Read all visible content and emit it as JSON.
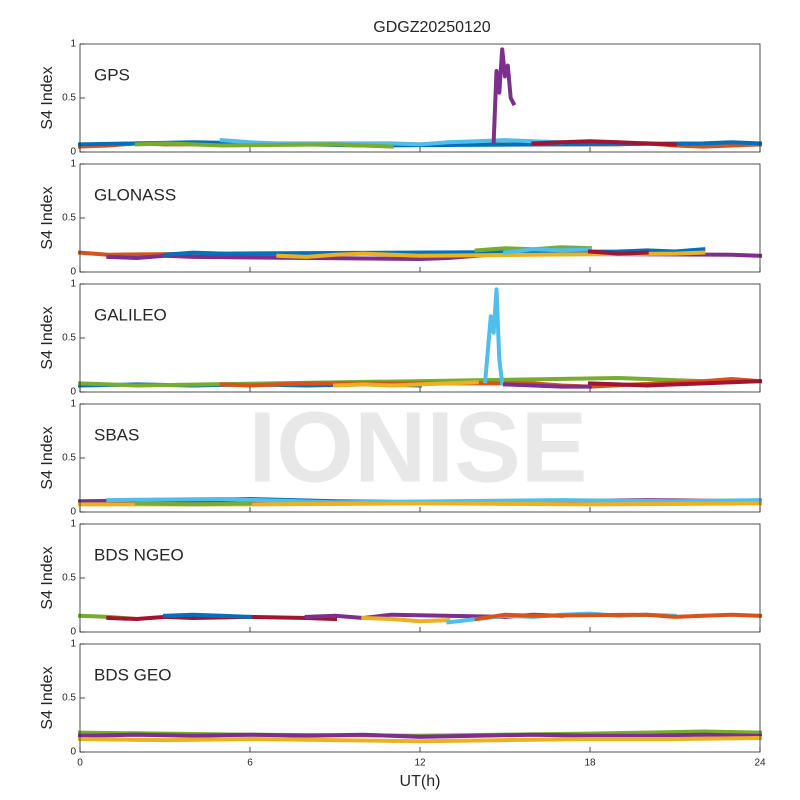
{
  "title": "GDGZ20250120",
  "watermark": "IONISE",
  "chart_data": [
    {
      "type": "line",
      "title": "GPS",
      "ylabel": "S4 Index",
      "ylim": [
        0,
        1
      ],
      "yticks": [
        0,
        0.5,
        1
      ],
      "xlim": [
        0,
        24
      ],
      "xticks": [
        0,
        6,
        12,
        18,
        24
      ],
      "series": [
        {
          "color": "#D95319",
          "x": [
            0,
            1,
            2,
            3,
            19,
            20,
            21,
            22,
            23,
            24
          ],
          "values": [
            0.05,
            0.06,
            0.08,
            0.07,
            0.07,
            0.08,
            0.06,
            0.05,
            0.06,
            0.07
          ]
        },
        {
          "color": "#0072BD",
          "x": [
            0,
            2,
            4,
            6,
            8,
            10,
            22,
            23,
            24
          ],
          "values": [
            0.07,
            0.08,
            0.09,
            0.08,
            0.07,
            0.06,
            0.08,
            0.09,
            0.08
          ]
        },
        {
          "color": "#4DBEEE",
          "x": [
            5,
            6,
            7,
            11,
            12,
            13,
            14,
            15,
            16,
            17
          ],
          "values": [
            0.11,
            0.09,
            0.08,
            0.08,
            0.07,
            0.09,
            0.1,
            0.11,
            0.1,
            0.09
          ]
        },
        {
          "color": "#A2142F",
          "x": [
            16,
            17,
            18,
            19,
            20,
            21
          ],
          "values": [
            0.08,
            0.09,
            0.1,
            0.09,
            0.08,
            0.07
          ]
        },
        {
          "color": "#77AC30",
          "x": [
            2,
            3,
            4,
            5,
            9,
            10,
            11
          ],
          "values": [
            0.07,
            0.08,
            0.07,
            0.06,
            0.07,
            0.06,
            0.05
          ]
        },
        {
          "color": "#7E2F8E",
          "x": [
            14.6,
            14.7,
            14.8,
            14.9,
            15,
            15.1,
            15.2,
            15.3
          ],
          "values": [
            0.1,
            0.75,
            0.55,
            0.95,
            0.7,
            0.8,
            0.5,
            0.45
          ]
        }
      ]
    },
    {
      "type": "line",
      "title": "GLONASS",
      "ylabel": "S4 Index",
      "ylim": [
        0,
        1
      ],
      "yticks": [
        0,
        0.5,
        1
      ],
      "xlim": [
        0,
        24
      ],
      "xticks": [
        0,
        6,
        12,
        18,
        24
      ],
      "series": [
        {
          "color": "#D95319",
          "x": [
            0,
            1,
            5,
            6,
            7,
            8
          ],
          "values": [
            0.18,
            0.16,
            0.17,
            0.15,
            0.16,
            0.15
          ]
        },
        {
          "color": "#7E2F8E",
          "x": [
            1,
            2,
            3,
            4,
            12,
            13,
            14,
            15,
            23,
            24
          ],
          "values": [
            0.14,
            0.13,
            0.15,
            0.14,
            0.12,
            0.13,
            0.15,
            0.17,
            0.16,
            0.15
          ]
        },
        {
          "color": "#0072BD",
          "x": [
            3,
            4,
            5,
            19,
            20,
            21,
            22
          ],
          "values": [
            0.16,
            0.18,
            0.17,
            0.19,
            0.2,
            0.19,
            0.21
          ]
        },
        {
          "color": "#EDB120",
          "x": [
            7,
            8,
            9,
            10,
            11,
            12,
            21,
            22
          ],
          "values": [
            0.15,
            0.14,
            0.16,
            0.17,
            0.16,
            0.15,
            0.17,
            0.18
          ]
        },
        {
          "color": "#77AC30",
          "x": [
            14,
            15,
            16,
            17,
            18
          ],
          "values": [
            0.2,
            0.22,
            0.21,
            0.23,
            0.22
          ]
        },
        {
          "color": "#4DBEEE",
          "x": [
            15,
            16,
            17,
            18
          ],
          "values": [
            0.18,
            0.21,
            0.2,
            0.21
          ]
        },
        {
          "color": "#A2142F",
          "x": [
            18,
            19,
            20
          ],
          "values": [
            0.19,
            0.17,
            0.18
          ]
        }
      ]
    },
    {
      "type": "line",
      "title": "GALILEO",
      "ylabel": "S4 Index",
      "ylim": [
        0,
        1
      ],
      "yticks": [
        0,
        0.5,
        1
      ],
      "xlim": [
        0,
        24
      ],
      "xticks": [
        0,
        6,
        12,
        18,
        24
      ],
      "series": [
        {
          "color": "#0072BD",
          "x": [
            0,
            2,
            4,
            6,
            8,
            10,
            12
          ],
          "values": [
            0.06,
            0.07,
            0.06,
            0.07,
            0.06,
            0.07,
            0.06
          ]
        },
        {
          "color": "#77AC30",
          "x": [
            0,
            1,
            2,
            19,
            20,
            21,
            22
          ],
          "values": [
            0.08,
            0.07,
            0.06,
            0.13,
            0.12,
            0.11,
            0.1
          ]
        },
        {
          "color": "#D95319",
          "x": [
            5,
            6,
            7,
            8,
            16,
            17,
            18,
            22,
            23,
            24
          ],
          "values": [
            0.07,
            0.06,
            0.07,
            0.08,
            0.08,
            0.06,
            0.05,
            0.1,
            0.12,
            0.1
          ]
        },
        {
          "color": "#EDB120",
          "x": [
            9,
            10,
            11,
            12,
            13,
            14
          ],
          "values": [
            0.06,
            0.07,
            0.06,
            0.07,
            0.08,
            0.09
          ]
        },
        {
          "color": "#4DBEEE",
          "x": [
            14.3,
            14.4,
            14.5,
            14.6,
            14.7,
            14.8,
            14.9
          ],
          "values": [
            0.1,
            0.4,
            0.7,
            0.55,
            0.95,
            0.3,
            0.08
          ]
        },
        {
          "color": "#A2142F",
          "x": [
            18,
            19,
            20,
            21,
            22,
            23,
            24
          ],
          "values": [
            0.08,
            0.07,
            0.06,
            0.07,
            0.08,
            0.09,
            0.1
          ]
        },
        {
          "color": "#7E2F8E",
          "x": [
            15,
            16,
            17,
            18
          ],
          "values": [
            0.07,
            0.06,
            0.05,
            0.05
          ]
        }
      ]
    },
    {
      "type": "line",
      "title": "SBAS",
      "ylabel": "S4 Index",
      "ylim": [
        0,
        1
      ],
      "yticks": [
        0,
        0.5,
        1
      ],
      "xlim": [
        0,
        24
      ],
      "xticks": [
        0,
        6,
        12,
        18,
        24
      ],
      "series": [
        {
          "color": "#0072BD",
          "x": [
            0,
            3,
            6,
            9,
            12,
            15,
            18,
            21,
            24
          ],
          "values": [
            0.1,
            0.11,
            0.12,
            0.1,
            0.09,
            0.1,
            0.1,
            0.09,
            0.1
          ]
        },
        {
          "color": "#7E2F8E",
          "x": [
            0,
            4,
            8,
            12,
            16,
            20,
            24
          ],
          "values": [
            0.09,
            0.1,
            0.1,
            0.09,
            0.1,
            0.11,
            0.1
          ]
        },
        {
          "color": "#4DBEEE",
          "x": [
            1,
            5,
            9,
            13,
            17,
            21,
            24
          ],
          "values": [
            0.11,
            0.12,
            0.09,
            0.1,
            0.11,
            0.1,
            0.11
          ]
        },
        {
          "color": "#EDB120",
          "x": [
            0,
            6,
            12,
            18,
            24
          ],
          "values": [
            0.07,
            0.07,
            0.08,
            0.07,
            0.08
          ]
        },
        {
          "color": "#77AC30",
          "x": [
            2,
            4,
            6
          ],
          "values": [
            0.08,
            0.07,
            0.08
          ]
        }
      ]
    },
    {
      "type": "line",
      "title": "BDS NGEO",
      "ylabel": "S4 Index",
      "ylim": [
        0,
        1
      ],
      "yticks": [
        0,
        0.5,
        1
      ],
      "xlim": [
        0,
        24
      ],
      "xticks": [
        0,
        6,
        12,
        18,
        24
      ],
      "series": [
        {
          "color": "#77AC30",
          "x": [
            0,
            1,
            2
          ],
          "values": [
            0.15,
            0.14,
            0.12
          ]
        },
        {
          "color": "#A2142F",
          "x": [
            1,
            2,
            3,
            4,
            6,
            8,
            9
          ],
          "values": [
            0.13,
            0.12,
            0.14,
            0.13,
            0.14,
            0.13,
            0.12
          ]
        },
        {
          "color": "#0072BD",
          "x": [
            3,
            4,
            5,
            6
          ],
          "values": [
            0.15,
            0.16,
            0.15,
            0.14
          ]
        },
        {
          "color": "#7E2F8E",
          "x": [
            8,
            9,
            10,
            11,
            15,
            16,
            17
          ],
          "values": [
            0.14,
            0.15,
            0.13,
            0.16,
            0.14,
            0.16,
            0.15
          ]
        },
        {
          "color": "#EDB120",
          "x": [
            10,
            11,
            12,
            13
          ],
          "values": [
            0.13,
            0.12,
            0.1,
            0.11
          ]
        },
        {
          "color": "#4DBEEE",
          "x": [
            13,
            14,
            15,
            16,
            17,
            18,
            19,
            20,
            21
          ],
          "values": [
            0.09,
            0.12,
            0.15,
            0.14,
            0.16,
            0.17,
            0.15,
            0.16,
            0.15
          ]
        },
        {
          "color": "#D95319",
          "x": [
            14,
            15,
            16,
            20,
            21,
            22,
            23,
            24
          ],
          "values": [
            0.12,
            0.16,
            0.15,
            0.16,
            0.14,
            0.15,
            0.16,
            0.15
          ]
        }
      ]
    },
    {
      "type": "line",
      "title": "BDS GEO",
      "ylabel": "S4 Index",
      "xlabel": "UT(h)",
      "ylim": [
        0,
        1
      ],
      "yticks": [
        0,
        0.5,
        1
      ],
      "xlim": [
        0,
        24
      ],
      "xticks": [
        0,
        6,
        12,
        18,
        24
      ],
      "series": [
        {
          "color": "#77AC30",
          "x": [
            0,
            6,
            12,
            18,
            20,
            22,
            24
          ],
          "values": [
            0.18,
            0.16,
            0.15,
            0.17,
            0.18,
            0.19,
            0.18
          ]
        },
        {
          "color": "#7E2F8E",
          "x": [
            0,
            2,
            4,
            6,
            8,
            10,
            12,
            14,
            16,
            18,
            20,
            22,
            24
          ],
          "values": [
            0.15,
            0.16,
            0.15,
            0.16,
            0.15,
            0.16,
            0.14,
            0.15,
            0.16,
            0.15,
            0.15,
            0.16,
            0.15
          ]
        },
        {
          "color": "#EDB120",
          "x": [
            0,
            3,
            6,
            9,
            12,
            15,
            18,
            21,
            24
          ],
          "values": [
            0.12,
            0.11,
            0.12,
            0.11,
            0.1,
            0.11,
            0.12,
            0.12,
            0.13
          ]
        }
      ]
    }
  ]
}
